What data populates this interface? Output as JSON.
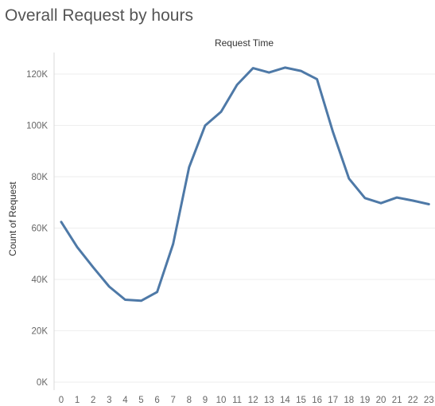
{
  "title": "Overall Request by hours",
  "chart_data": {
    "type": "line",
    "title": "Overall Request by hours",
    "column_header": "Request Time",
    "xlabel": "",
    "ylabel": "Count of Request",
    "x": [
      "0",
      "1",
      "2",
      "3",
      "4",
      "5",
      "6",
      "7",
      "8",
      "9",
      "10",
      "11",
      "12",
      "13",
      "14",
      "15",
      "16",
      "17",
      "18",
      "19",
      "20",
      "21",
      "22",
      "23"
    ],
    "series": [
      {
        "values": [
          62400,
          52600,
          44700,
          37200,
          32100,
          31700,
          35100,
          53800,
          83700,
          99900,
          105300,
          115800,
          122300,
          120600,
          122500,
          121200,
          118000,
          97400,
          79300,
          71700,
          69700,
          71900,
          70700,
          69300
        ]
      }
    ],
    "ylim": [
      0,
      130000
    ],
    "y_ticks": [
      "0K",
      "20K",
      "40K",
      "60K",
      "80K",
      "100K",
      "120K"
    ],
    "y_tick_values": [
      0,
      20000,
      40000,
      60000,
      80000,
      100000,
      120000
    ],
    "grid": true,
    "line_color": "#4e79a7",
    "legend": "none"
  }
}
